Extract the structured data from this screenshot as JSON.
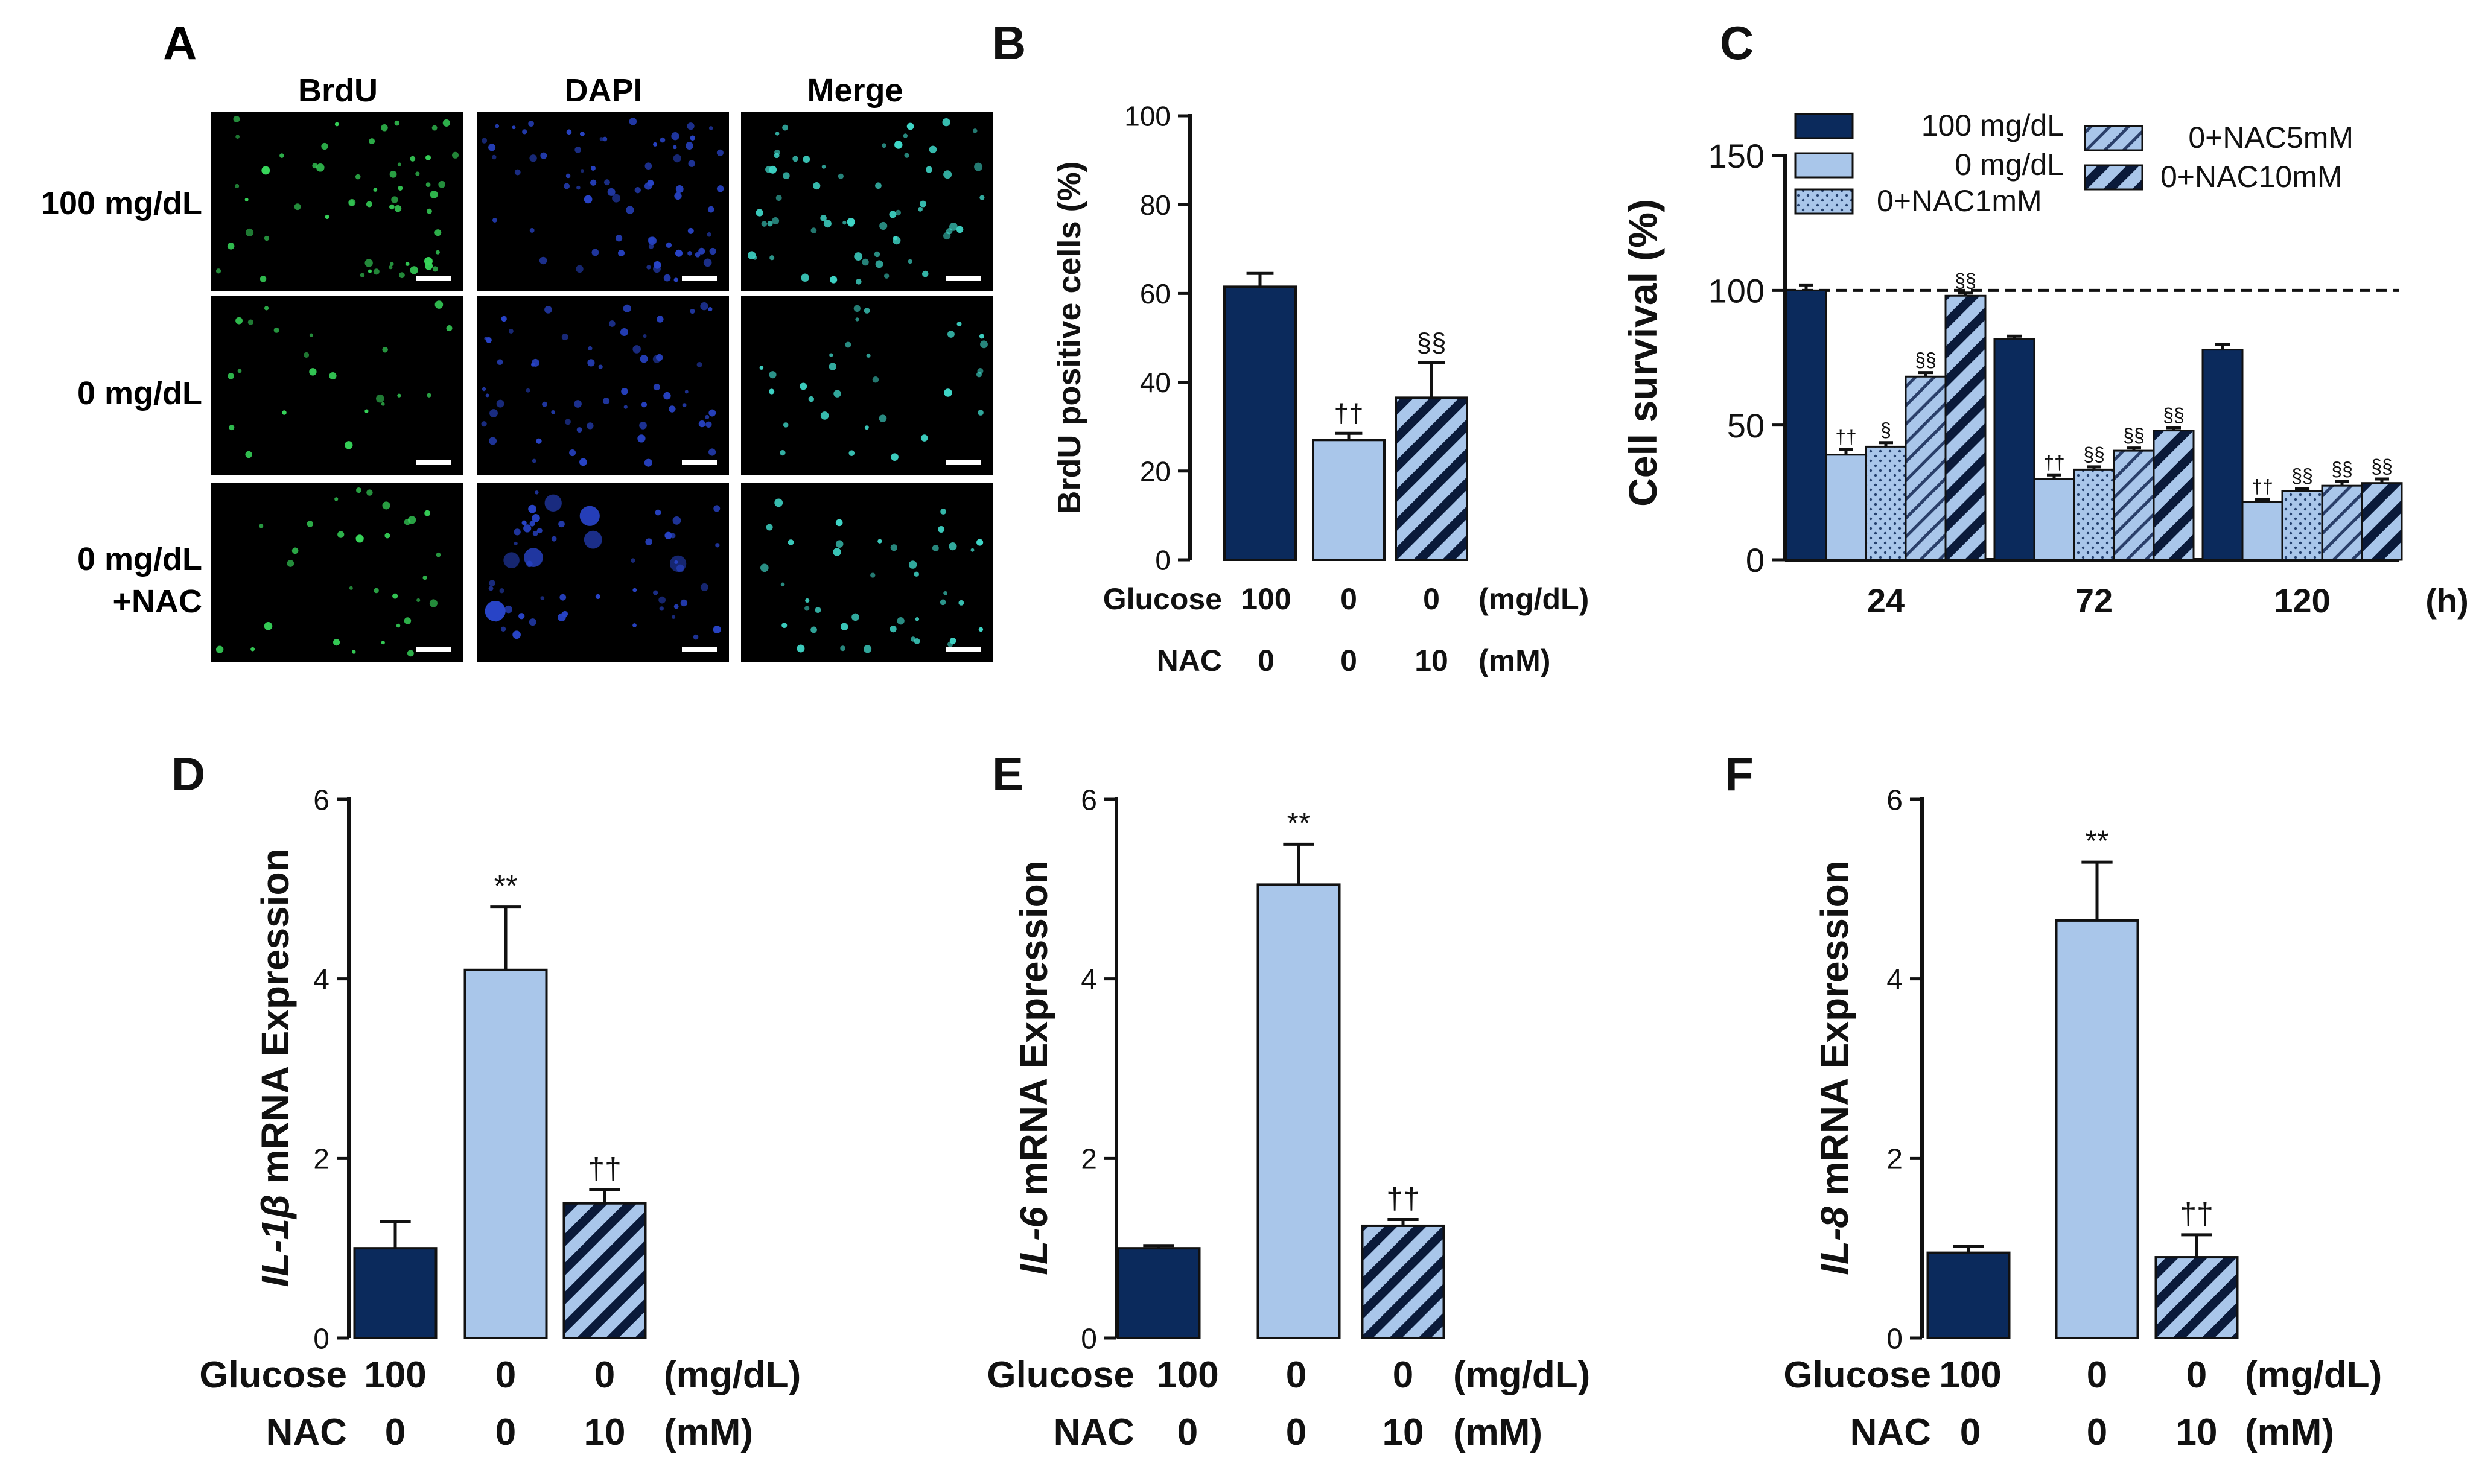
{
  "colors": {
    "dark": "#0b2a5c",
    "light": "#a9c6ea",
    "hatch_stripe": "#0a1a3a",
    "micro_bg": "#000000",
    "green_nuclei": "#37d65a",
    "blue_nuclei": "#2844c8",
    "cyan_nuclei": "#3fd7c8",
    "scale_bar": "#ffffff"
  },
  "micrograph_panel": {
    "label": "A",
    "columns": [
      "BrdU",
      "DAPI",
      "Merge"
    ],
    "rows": [
      {
        "label_lines": [
          "100 mg/dL"
        ]
      },
      {
        "label_lines": [
          "0 mg/dL"
        ]
      },
      {
        "label_lines": [
          "0 mg/dL",
          "+NAC"
        ]
      }
    ]
  },
  "chart_data": [
    {
      "id": "B",
      "type": "bar",
      "label": "B",
      "ylabel": "BrdU positive cells (%)",
      "ylim": [
        0,
        100
      ],
      "yticks": [
        "0",
        "20",
        "40",
        "60",
        "80",
        "100"
      ],
      "ytick_values": [
        0,
        20,
        40,
        60,
        80,
        100
      ],
      "values": [
        61.5,
        27,
        36.5
      ],
      "errors": [
        3,
        1.5,
        8
      ],
      "styles": [
        "dark",
        "light",
        "hatch"
      ],
      "annotations": [
        "",
        "††",
        "§§"
      ],
      "rows": [
        {
          "name": "Glucose",
          "cells": [
            "100",
            "0",
            "0"
          ],
          "unit": "(mg/dL)"
        },
        {
          "name": "NAC",
          "cells": [
            "0",
            "0",
            "10"
          ],
          "unit": "(mM)"
        }
      ]
    },
    {
      "id": "C",
      "type": "bar",
      "label": "C",
      "ylabel": "Cell survival (%)",
      "ylim": [
        0,
        150
      ],
      "yticks": [
        "0",
        "50",
        "100",
        "150"
      ],
      "ytick_values": [
        0,
        50,
        100,
        150
      ],
      "reference_line": 100,
      "categories": [
        "24",
        "72",
        "120"
      ],
      "x_unit": "(h)",
      "legend": [
        "100 mg/dL",
        "0 mg/dL",
        "0+NAC1mM",
        "0+NAC5mM",
        "0+NAC10mM"
      ],
      "series": [
        {
          "name": "100 mg/dL",
          "style": "dark",
          "values": [
            100,
            82,
            78
          ],
          "errors": [
            2,
            1,
            2
          ],
          "annotations": [
            "",
            "",
            ""
          ]
        },
        {
          "name": "0 mg/dL",
          "style": "light",
          "values": [
            39,
            30,
            21.5
          ],
          "errors": [
            2,
            1.5,
            1
          ],
          "annotations": [
            "††",
            "††",
            "††"
          ]
        },
        {
          "name": "0+NAC1mM",
          "style": "dots",
          "values": [
            42,
            33.5,
            25.5
          ],
          "errors": [
            1.5,
            1,
            1
          ],
          "annotations": [
            "§",
            "§§",
            "§§"
          ]
        },
        {
          "name": "0+NAC5mM",
          "style": "hatch-light",
          "values": [
            68,
            40.5,
            27.5
          ],
          "errors": [
            1.5,
            1,
            1.5
          ],
          "annotations": [
            "§§",
            "§§",
            "§§"
          ]
        },
        {
          "name": "0+NAC10mM",
          "style": "hatch",
          "values": [
            98,
            48,
            28.5
          ],
          "errors": [
            1,
            1,
            1.5
          ],
          "annotations": [
            "§§",
            "§§",
            "§§"
          ]
        }
      ]
    },
    {
      "id": "D",
      "type": "bar",
      "label": "D",
      "ylabel_gene": "IL-1β",
      "ylabel_rest": " mRNA Expression",
      "ylim": [
        0,
        6
      ],
      "yticks": [
        "0",
        "2",
        "4",
        "6"
      ],
      "ytick_values": [
        0,
        2,
        4,
        6
      ],
      "values": [
        1.0,
        4.1,
        1.5
      ],
      "errors": [
        0.3,
        0.7,
        0.15
      ],
      "styles": [
        "dark",
        "light",
        "hatch"
      ],
      "annotations": [
        "",
        "**",
        "††"
      ],
      "rows": [
        {
          "name": "Glucose",
          "cells": [
            "100",
            "0",
            "0"
          ],
          "unit": "(mg/dL)"
        },
        {
          "name": "NAC",
          "cells": [
            "0",
            "0",
            "10"
          ],
          "unit": "(mM)"
        }
      ]
    },
    {
      "id": "E",
      "type": "bar",
      "label": "E",
      "ylabel_gene": "IL-6",
      "ylabel_rest": " mRNA Expression",
      "ylim": [
        0,
        6
      ],
      "yticks": [
        "0",
        "2",
        "4",
        "6"
      ],
      "ytick_values": [
        0,
        2,
        4,
        6
      ],
      "values": [
        1.0,
        5.05,
        1.25
      ],
      "errors": [
        0.03,
        0.45,
        0.07
      ],
      "styles": [
        "dark",
        "light",
        "hatch"
      ],
      "annotations": [
        "",
        "**",
        "††"
      ],
      "rows": [
        {
          "name": "Glucose",
          "cells": [
            "100",
            "0",
            "0"
          ],
          "unit": "(mg/dL)"
        },
        {
          "name": "NAC",
          "cells": [
            "0",
            "0",
            "10"
          ],
          "unit": "(mM)"
        }
      ]
    },
    {
      "id": "F",
      "type": "bar",
      "label": "F",
      "ylabel_gene": "IL-8",
      "ylabel_rest": " mRNA Expression",
      "ylim": [
        0,
        6
      ],
      "yticks": [
        "0",
        "2",
        "4",
        "6"
      ],
      "ytick_values": [
        0,
        2,
        4,
        6
      ],
      "values": [
        0.95,
        4.65,
        0.9
      ],
      "errors": [
        0.07,
        0.65,
        0.25
      ],
      "styles": [
        "dark",
        "light",
        "hatch"
      ],
      "annotations": [
        "",
        "**",
        "††"
      ],
      "rows": [
        {
          "name": "Glucose",
          "cells": [
            "100",
            "0",
            "0"
          ],
          "unit": "(mg/dL)"
        },
        {
          "name": "NAC",
          "cells": [
            "0",
            "0",
            "10"
          ],
          "unit": "(mM)"
        }
      ]
    }
  ]
}
